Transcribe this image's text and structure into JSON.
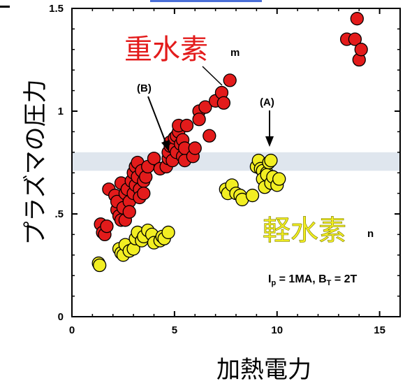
{
  "chart_data": {
    "type": "scatter",
    "xlabel": "加熱電力",
    "ylabel": "プラズマの圧力",
    "xlim": [
      0,
      16
    ],
    "ylim": [
      0,
      1.5
    ],
    "x_ticks": [
      {
        "value": 0,
        "label": "0"
      },
      {
        "value": 5,
        "label": "5"
      },
      {
        "value": 10,
        "label": "10"
      },
      {
        "value": 15,
        "label": "15"
      }
    ],
    "y_ticks": [
      {
        "value": 0,
        "label": "0"
      },
      {
        "value": 0.5,
        "label": ".5"
      },
      {
        "value": 1,
        "label": "1"
      },
      {
        "value": 1.5,
        "label": "1.5"
      }
    ],
    "band": {
      "y0": 0.71,
      "y1": 0.8,
      "color": "#dfe6ee"
    },
    "series": [
      {
        "name": "重水素",
        "color": "#e31b1b",
        "points": [
          [
            1.4,
            0.45
          ],
          [
            1.5,
            0.41
          ],
          [
            1.6,
            0.4
          ],
          [
            1.7,
            0.44
          ],
          [
            1.8,
            0.62
          ],
          [
            2.1,
            0.59
          ],
          [
            2.2,
            0.52
          ],
          [
            2.2,
            0.56
          ],
          [
            2.3,
            0.49
          ],
          [
            2.4,
            0.47
          ],
          [
            2.4,
            0.65
          ],
          [
            2.5,
            0.53
          ],
          [
            2.6,
            0.6
          ],
          [
            2.6,
            0.47
          ],
          [
            2.7,
            0.62
          ],
          [
            2.8,
            0.56
          ],
          [
            2.8,
            0.51
          ],
          [
            2.9,
            0.66
          ],
          [
            3.0,
            0.6
          ],
          [
            3.0,
            0.7
          ],
          [
            3.1,
            0.73
          ],
          [
            3.1,
            0.64
          ],
          [
            3.2,
            0.68
          ],
          [
            3.2,
            0.75
          ],
          [
            3.3,
            0.62
          ],
          [
            3.3,
            0.58
          ],
          [
            3.4,
            0.71
          ],
          [
            3.5,
            0.66
          ],
          [
            3.5,
            0.6
          ],
          [
            3.6,
            0.68
          ],
          [
            3.7,
            0.73
          ],
          [
            4.0,
            0.77
          ],
          [
            4.3,
            0.72
          ],
          [
            4.6,
            0.73
          ],
          [
            4.7,
            0.77
          ],
          [
            4.7,
            0.8
          ],
          [
            4.8,
            0.83
          ],
          [
            4.8,
            0.85
          ],
          [
            4.9,
            0.76
          ],
          [
            5.0,
            0.82
          ],
          [
            5.0,
            0.87
          ],
          [
            5.1,
            0.8
          ],
          [
            5.1,
            0.88
          ],
          [
            5.2,
            0.9
          ],
          [
            5.2,
            0.93
          ],
          [
            5.3,
            0.84
          ],
          [
            5.4,
            0.86
          ],
          [
            5.4,
            0.78
          ],
          [
            5.5,
            0.76
          ],
          [
            5.5,
            0.82
          ],
          [
            5.6,
            0.93
          ],
          [
            5.9,
            0.78
          ],
          [
            6.0,
            0.82
          ],
          [
            6.2,
            1.0
          ],
          [
            6.2,
            0.96
          ],
          [
            6.5,
            1.02
          ],
          [
            6.7,
            0.88
          ],
          [
            7.0,
            1.05
          ],
          [
            7.3,
            1.09
          ],
          [
            7.4,
            1.04
          ],
          [
            7.7,
            1.15
          ],
          [
            13.4,
            1.35
          ],
          [
            13.8,
            1.35
          ],
          [
            13.9,
            1.45
          ],
          [
            14.0,
            1.25
          ],
          [
            14.1,
            1.3
          ]
        ]
      },
      {
        "name": "軽水素",
        "color": "#f2ee22",
        "points": [
          [
            1.3,
            0.26
          ],
          [
            1.35,
            0.25
          ],
          [
            2.3,
            0.33
          ],
          [
            2.4,
            0.31
          ],
          [
            2.5,
            0.3
          ],
          [
            2.6,
            0.35
          ],
          [
            2.8,
            0.32
          ],
          [
            3.0,
            0.33
          ],
          [
            3.1,
            0.38
          ],
          [
            3.2,
            0.41
          ],
          [
            3.4,
            0.37
          ],
          [
            3.5,
            0.39
          ],
          [
            3.7,
            0.42
          ],
          [
            3.9,
            0.4
          ],
          [
            4.0,
            0.36
          ],
          [
            4.3,
            0.37
          ],
          [
            4.4,
            0.39
          ],
          [
            4.5,
            0.38
          ],
          [
            4.7,
            0.41
          ],
          [
            7.5,
            0.62
          ],
          [
            7.6,
            0.6
          ],
          [
            7.8,
            0.64
          ],
          [
            8.0,
            0.6
          ],
          [
            8.2,
            0.59
          ],
          [
            8.3,
            0.57
          ],
          [
            8.8,
            0.59
          ],
          [
            9.0,
            0.73
          ],
          [
            9.1,
            0.76
          ],
          [
            9.2,
            0.72
          ],
          [
            9.3,
            0.71
          ],
          [
            9.3,
            0.67
          ],
          [
            9.4,
            0.63
          ],
          [
            9.5,
            0.7
          ],
          [
            9.5,
            0.69
          ],
          [
            9.6,
            0.75
          ],
          [
            9.7,
            0.65
          ],
          [
            9.8,
            0.68
          ],
          [
            10.0,
            0.64
          ],
          [
            10.1,
            0.67
          ],
          [
            9.7,
            0.76
          ]
        ]
      }
    ],
    "annotations": {
      "d_label": "重水素",
      "d_marker": "m",
      "h_label": "軽水素",
      "h_marker": "n",
      "a_label": "(A)",
      "b_label": "(B)",
      "conditions": {
        "ip": "I",
        "ip_sub": "p",
        "ip_eq": " = 1MA, B",
        "bt_sub": "T",
        "bt_eq": " = 2T"
      }
    }
  }
}
